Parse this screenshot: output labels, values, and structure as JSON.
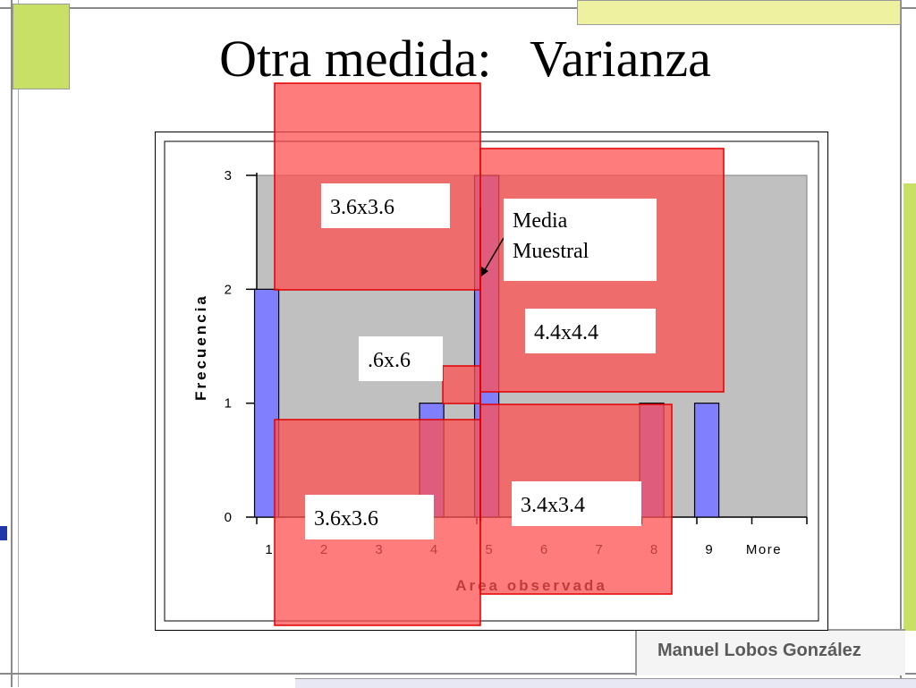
{
  "slide": {
    "title": "Otra medida:   Varianza",
    "author": "Manuel Lobos González"
  },
  "colors": {
    "bar_fill": "#8080ff",
    "plot_bg": "#c0c0c0",
    "square_fill": "#ff5050",
    "square_stroke": "#e00000",
    "deco_green": "#c8e066",
    "deco_blue": "#1f3aa8"
  },
  "chart_data": {
    "type": "bar",
    "title": "",
    "xlabel": "Area observada",
    "ylabel": "Frecuencia",
    "categories": [
      "1",
      "2",
      "3",
      "4",
      "5",
      "6",
      "7",
      "8",
      "9",
      "More"
    ],
    "values": [
      2,
      0,
      0,
      1,
      3,
      0,
      0,
      1,
      1,
      0
    ],
    "ylim": [
      0,
      3
    ],
    "yticks": [
      "0",
      "1",
      "2",
      "3"
    ],
    "legend": "none",
    "annotations": {
      "mean_label": [
        "Media",
        "Muestral"
      ],
      "square_labels": [
        "3.6x3.6",
        "3.6x3.6",
        ".6x.6",
        "4.4x4.4",
        "3.4x3.4"
      ]
    }
  }
}
